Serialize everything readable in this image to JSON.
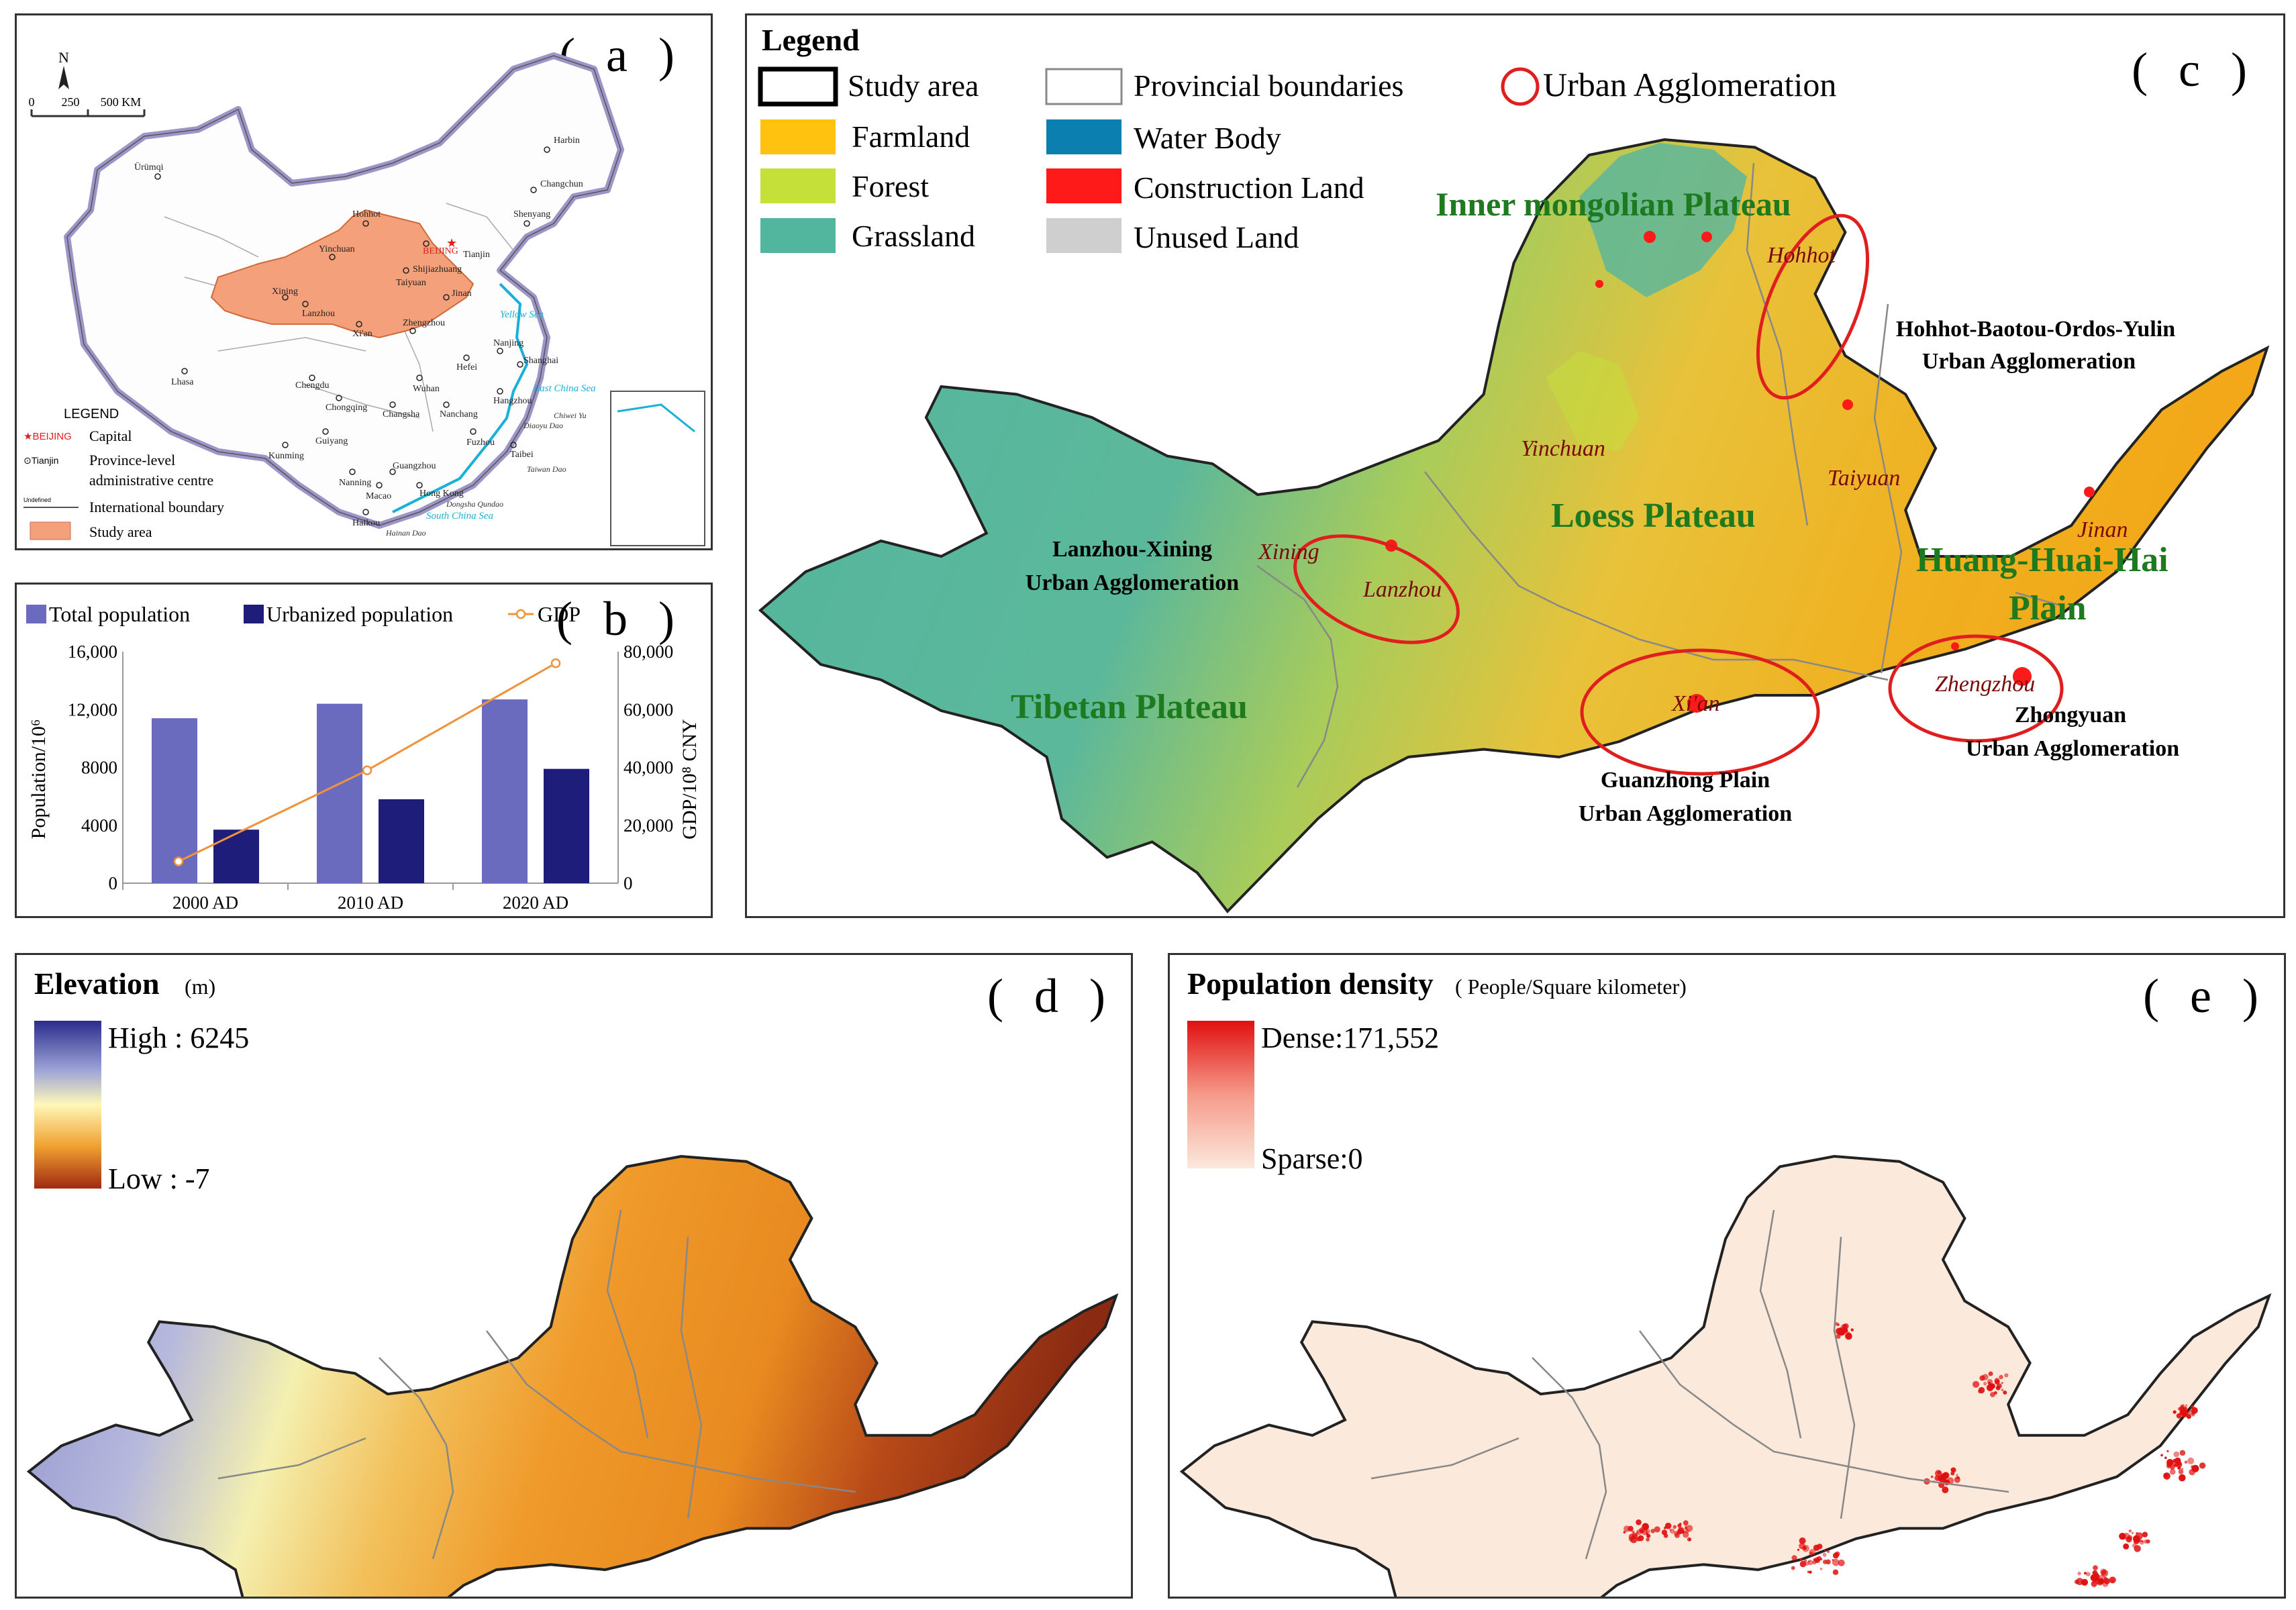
{
  "panel_a": {
    "label": "( a )",
    "north": "N",
    "scale": [
      "0",
      "250",
      "500 KM"
    ],
    "legend_title": "LEGEND",
    "legend": [
      {
        "symbol": "★BEIJING",
        "text": "Capital"
      },
      {
        "symbol": "⊙Tianjin",
        "text": "Province-level administrative centre"
      },
      {
        "symbol": "Undefined",
        "text": "International boundary"
      },
      {
        "symbol": "",
        "text": "Study area"
      }
    ],
    "cities": [
      "Ürümqi",
      "Harbin",
      "Changchun",
      "Shenyang",
      "Hohhot",
      "BEIJING",
      "Tianjin",
      "Shijiazhuang",
      "Yinchuan",
      "Taiyuan",
      "Jinan",
      "Xining",
      "Lanzhou",
      "Xi'an",
      "Zhengzhou",
      "Hefei",
      "Nanjing",
      "Shanghai",
      "Hangzhou",
      "Wuhan",
      "Chengdu",
      "Chongqing",
      "Changsha",
      "Nanchang",
      "Fuzhou",
      "Taibei",
      "Guiyang",
      "Kunming",
      "Nanning",
      "Guangzhou",
      "Macao",
      "Hong Kong",
      "Haikou",
      "Lhasa"
    ],
    "seas": [
      "Yellow Sea",
      "East China Sea",
      "South China Sea"
    ],
    "islands": [
      "Dongsha Qundao",
      "Hainan Dao",
      "Taiwan Dao",
      "Diaoyu Dao",
      "Chiwei Yu"
    ],
    "colors": {
      "study_area": "#f4a07a",
      "sea": "#1ab0d8",
      "border": "#9c96c8"
    }
  },
  "panel_b": {
    "label": "( b )",
    "legend": [
      "Total population",
      "Urbanized population",
      "GDP"
    ],
    "ylabel_left": "Population/10⁶",
    "ylabel_right": "GDP/10⁸ CNY",
    "colors": {
      "total": "#6a6abf",
      "urban": "#1e1e7a",
      "gdp": "#f0923a"
    }
  },
  "chart_data": {
    "type": "bar",
    "categories": [
      "2000 AD",
      "2010 AD",
      "2020 AD"
    ],
    "series": [
      {
        "name": "Total population",
        "values": [
          11400,
          12400,
          12700
        ]
      },
      {
        "name": "Urbanized population",
        "values": [
          3700,
          5800,
          7900
        ]
      },
      {
        "name": "GDP",
        "type": "line",
        "axis": "right",
        "values": [
          7500,
          39000,
          76000
        ]
      }
    ],
    "ylim": [
      0,
      16000
    ],
    "yticks": [
      "0",
      "4000",
      "8000",
      "12,000",
      "16,000"
    ],
    "y2lim": [
      0,
      80000
    ],
    "y2ticks": [
      "0",
      "20,000",
      "40,000",
      "60,000",
      "80,000"
    ],
    "legend": "top"
  },
  "panel_c": {
    "label": "( c )",
    "legend_title": "Legend",
    "legend": [
      {
        "text": "Study area",
        "color": "#ffffff"
      },
      {
        "text": "Provincial boundaries",
        "color": "#ffffff"
      },
      {
        "text": "Urban Agglomeration",
        "color": "#e01e1e"
      },
      {
        "text": "Farmland",
        "color": "#ffc20e"
      },
      {
        "text": "Water Body",
        "color": "#0a7fb0"
      },
      {
        "text": "Forest",
        "color": "#c6e03a"
      },
      {
        "text": "Construction Land",
        "color": "#ff1a1a"
      },
      {
        "text": "Grassland",
        "color": "#52b59e"
      },
      {
        "text": "Unused Land",
        "color": "#cfcfcf"
      }
    ],
    "regions": [
      "Inner mongolian Plateau",
      "Loess Plateau",
      "Tibetan Plateau",
      "Huang-Huai-Hai",
      "Plain"
    ],
    "cities": [
      "Hohhot",
      "Yinchuan",
      "Taiyuan",
      "Jinan",
      "Xining",
      "Lanzhou",
      "Xi'an",
      "Zhengzhou"
    ],
    "agglomerations": [
      [
        "Hohhot-Baotou-Ordos-Yulin",
        "Urban Agglomeration"
      ],
      [
        "Lanzhou-Xining",
        "Urban Agglomeration"
      ],
      [
        "Guanzhong Plain",
        "Urban Agglomeration"
      ],
      [
        "Zhongyuan",
        "Urban Agglomeration"
      ]
    ]
  },
  "panel_d": {
    "label": "( d )",
    "title": "Elevation",
    "unit": "(m)",
    "high": "High : 6245",
    "low": "Low : -7",
    "colors": [
      "#2b2c8c",
      "#9fa6d8",
      "#fff8b8",
      "#f0a030",
      "#a02a10"
    ]
  },
  "panel_e": {
    "label": "( e )",
    "title": "Population density",
    "unit": "( People/Square kilometer)",
    "high": "Dense:171,552",
    "low": "Sparse:0",
    "colors": [
      "#e01010",
      "#fbe9dc"
    ]
  }
}
